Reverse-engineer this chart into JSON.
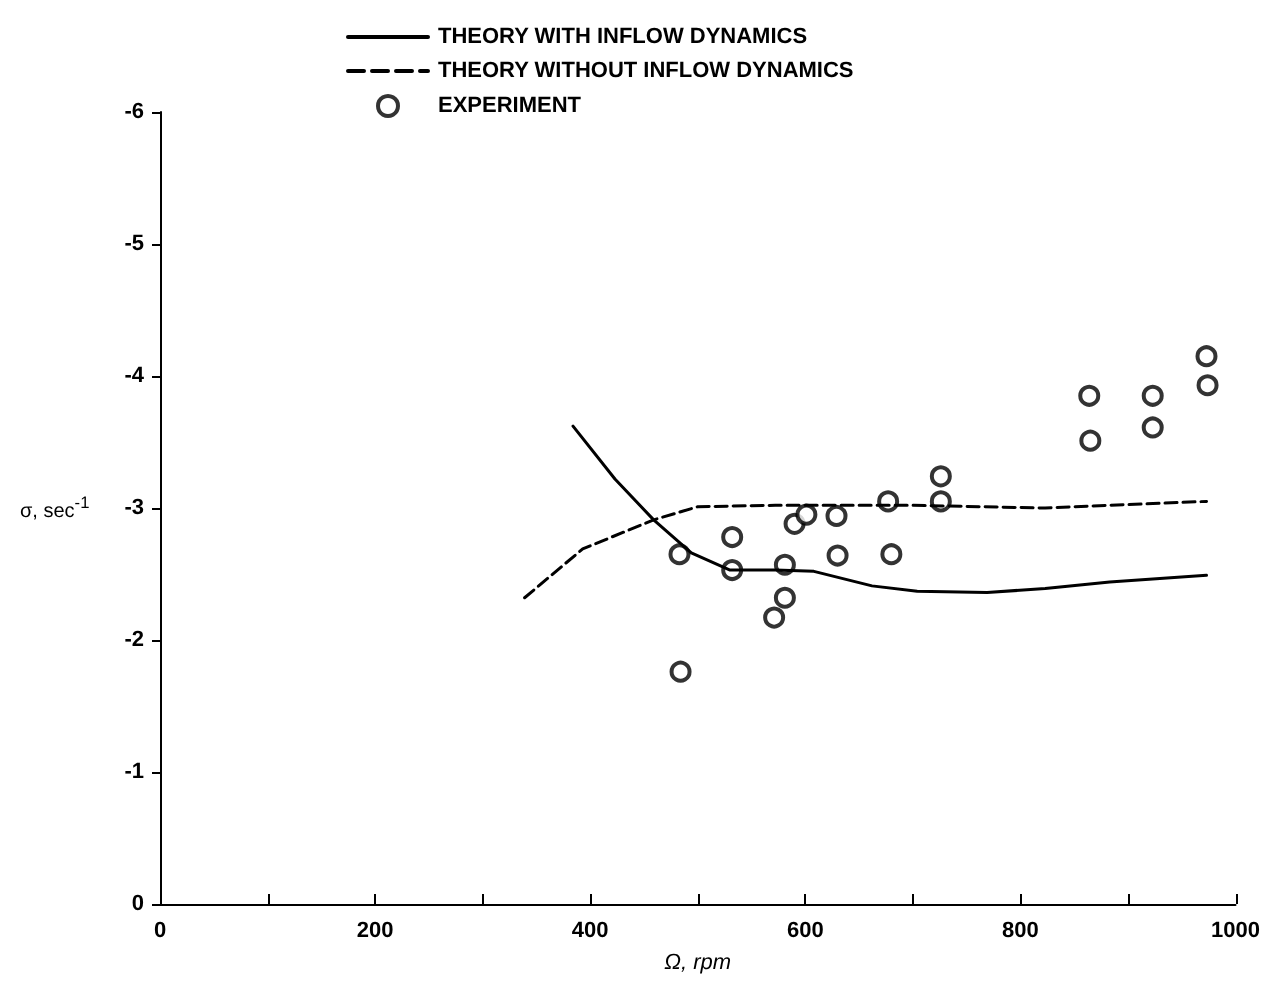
{
  "chart_data": {
    "type": "line",
    "xlabel": "Ω, rpm",
    "ylabel": "σ, sec$^{-1}$",
    "xlim": [
      0,
      1000
    ],
    "xticks": [
      0,
      {
        "value": 100,
        "label": null
      },
      200,
      {
        "value": 300,
        "label": null
      },
      400,
      {
        "value": 500,
        "label": null
      },
      600,
      {
        "value": 700,
        "label": null
      },
      800,
      {
        "value": 900,
        "label": null
      },
      1000
    ],
    "ylim": [
      0,
      -6
    ],
    "yticks": [
      0,
      -1,
      -2,
      -3,
      -4,
      -5,
      -6
    ],
    "grid": false,
    "legend": "top",
    "series": [
      {
        "name": "THEORY WITH INFLOW DYNAMICS",
        "line_style": "solid",
        "marker": "none",
        "color": "#000000",
        "x": [
          384,
          423,
          459,
          494,
          530,
          572,
          608,
          662,
          704,
          769,
          823,
          883,
          973
        ],
        "values": [
          -3.62,
          -3.22,
          -2.91,
          -2.66,
          -2.53,
          -2.53,
          -2.52,
          -2.41,
          -2.37,
          -2.36,
          -2.39,
          -2.44,
          -2.49
        ]
      },
      {
        "name": "THEORY WITHOUT INFLOW DYNAMICS",
        "line_style": "dashed",
        "marker": "none",
        "color": "#000000",
        "x": [
          339,
          393,
          459,
          500,
          572,
          700,
          823,
          973
        ],
        "values": [
          -2.32,
          -2.69,
          -2.91,
          -3.01,
          -3.02,
          -3.02,
          -3.0,
          -3.05
        ]
      },
      {
        "name": "EXPERIMENT",
        "type": "scatter",
        "marker": "circle",
        "color": "#000000",
        "x": [
          483,
          484,
          532,
          532,
          581,
          581,
          571,
          590,
          601,
          629,
          630,
          677,
          680,
          726,
          726,
          864,
          865,
          923,
          923,
          973,
          974
        ],
        "values": [
          -2.65,
          -1.76,
          -2.78,
          -2.53,
          -2.57,
          -2.32,
          -2.17,
          -2.88,
          -2.95,
          -2.94,
          -2.64,
          -3.05,
          -2.65,
          -3.24,
          -3.05,
          -3.85,
          -3.51,
          -3.85,
          -3.61,
          -4.15,
          -3.93
        ]
      }
    ]
  }
}
